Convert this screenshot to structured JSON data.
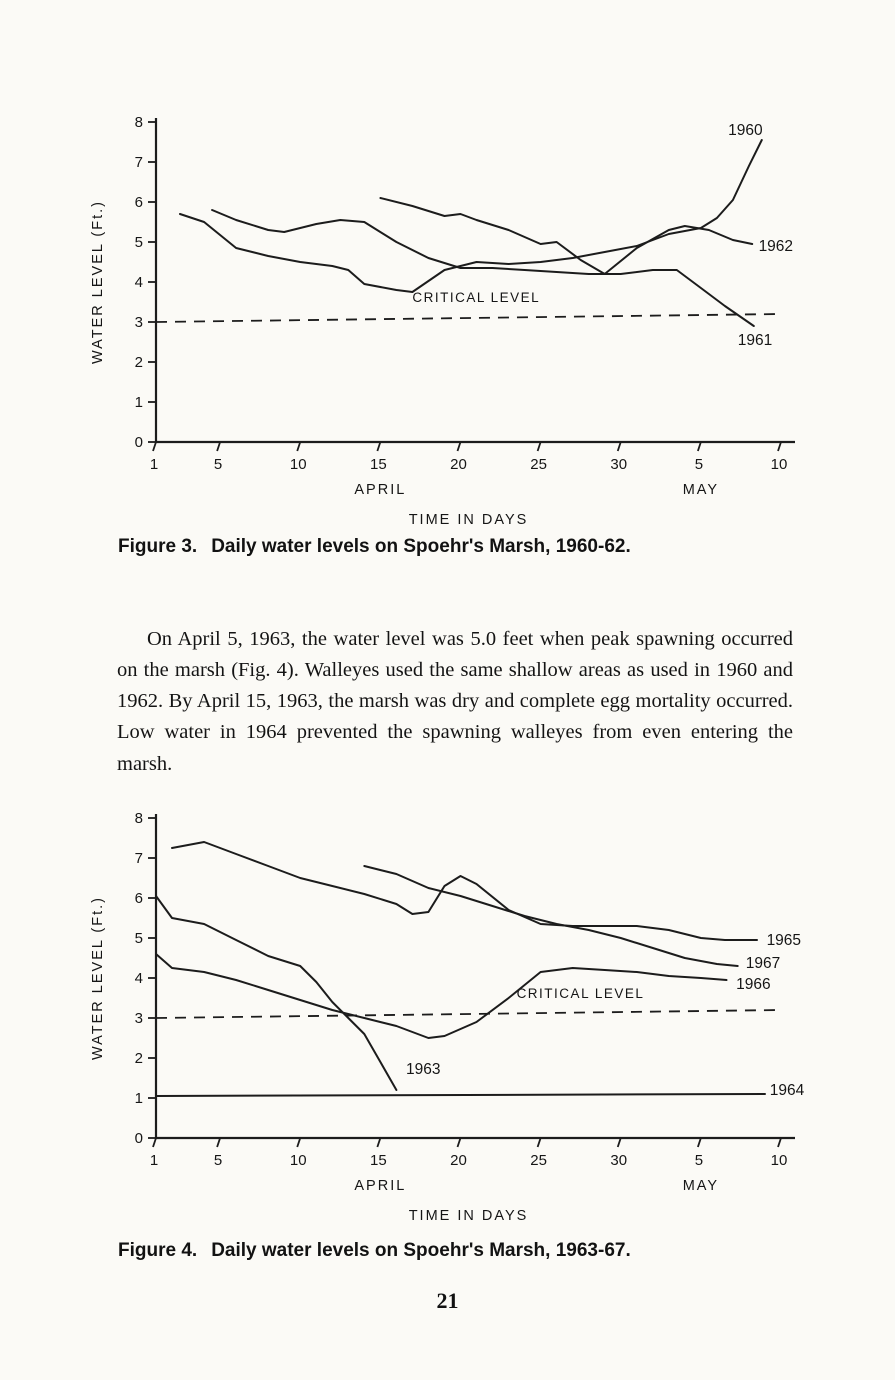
{
  "page_number": "21",
  "paragraph": "On April 5, 1963, the water level was 5.0 feet when peak spawning occurred on the marsh (Fig. 4). Walleyes used the same shallow areas as used in 1960 and 1962. By April 15, 1963, the marsh was dry and complete egg mortality occurred. Low water in 1964 prevented the spawning walleyes from even entering the marsh.",
  "figures": [
    {
      "caption_label": "Figure 3.",
      "caption_text": "Daily water levels on Spoehr's Marsh, 1960-62."
    },
    {
      "caption_label": "Figure 4.",
      "caption_text": "Daily water levels on Spoehr's Marsh, 1963-67."
    }
  ],
  "chart_data": [
    {
      "type": "line",
      "title": "Daily water levels on Spoehr's Marsh, 1960-62",
      "xlabel": "TIME IN DAYS",
      "ylabel": "WATER LEVEL (Ft.)",
      "xlim": [
        1,
        40
      ],
      "ylim": [
        0,
        8
      ],
      "y_ticks": [
        0,
        1,
        2,
        3,
        4,
        5,
        6,
        7,
        8
      ],
      "x_ticks": [
        {
          "value": 1,
          "label": "1"
        },
        {
          "value": 5,
          "label": "5"
        },
        {
          "value": 10,
          "label": "10"
        },
        {
          "value": 15,
          "label": "15"
        },
        {
          "value": 20,
          "label": "20"
        },
        {
          "value": 25,
          "label": "25"
        },
        {
          "value": 30,
          "label": "30"
        },
        {
          "value": 35,
          "label": "5"
        },
        {
          "value": 40,
          "label": "10"
        }
      ],
      "month_labels": [
        {
          "value": 15,
          "label": "APRIL"
        },
        {
          "value": 35,
          "label": "MAY"
        }
      ],
      "grid": false,
      "critical_level": {
        "label": "CRITICAL LEVEL",
        "x": [
          1,
          40
        ],
        "y": [
          3.0,
          3.2
        ],
        "label_x": 17,
        "label_y": 3.5
      },
      "series": [
        {
          "name": "1960",
          "x": [
            2.5,
            4,
            6,
            8,
            10,
            12,
            13,
            14,
            16,
            17,
            19,
            21,
            23,
            25,
            27,
            29,
            31,
            33,
            35,
            36,
            37,
            38,
            38.8
          ],
          "y": [
            5.7,
            5.5,
            4.85,
            4.65,
            4.5,
            4.4,
            4.3,
            3.95,
            3.8,
            3.75,
            4.3,
            4.5,
            4.45,
            4.5,
            4.6,
            4.75,
            4.9,
            5.2,
            5.35,
            5.6,
            6.05,
            6.9,
            7.55
          ],
          "label_x": 36.7,
          "label_y": 7.8
        },
        {
          "name": "1961",
          "x": [
            4.5,
            6,
            8,
            9,
            11,
            12.5,
            14,
            16,
            18,
            20,
            22,
            24,
            26,
            28,
            30,
            32,
            33.5,
            35,
            36.5,
            38.3
          ],
          "y": [
            5.8,
            5.55,
            5.3,
            5.25,
            5.45,
            5.55,
            5.5,
            5.0,
            4.6,
            4.35,
            4.35,
            4.3,
            4.25,
            4.2,
            4.2,
            4.3,
            4.3,
            3.85,
            3.4,
            2.9
          ],
          "label_x": 37.3,
          "label_y": 2.55
        },
        {
          "name": "1962",
          "x": [
            15,
            17,
            19,
            20,
            21,
            23,
            25,
            26,
            27.5,
            29,
            31,
            33,
            34,
            35.5,
            37,
            38.2
          ],
          "y": [
            6.1,
            5.9,
            5.65,
            5.7,
            5.55,
            5.3,
            4.95,
            5.0,
            4.55,
            4.2,
            4.85,
            5.3,
            5.4,
            5.3,
            5.05,
            4.95
          ],
          "label_x": 38.6,
          "label_y": 4.9
        }
      ]
    },
    {
      "type": "line",
      "title": "Daily water levels on Spoehr's Marsh, 1963-67",
      "xlabel": "TIME IN DAYS",
      "ylabel": "WATER LEVEL (Ft.)",
      "xlim": [
        1,
        40
      ],
      "ylim": [
        0,
        8
      ],
      "y_ticks": [
        0,
        1,
        2,
        3,
        4,
        5,
        6,
        7,
        8
      ],
      "x_ticks": [
        {
          "value": 1,
          "label": "1"
        },
        {
          "value": 5,
          "label": "5"
        },
        {
          "value": 10,
          "label": "10"
        },
        {
          "value": 15,
          "label": "15"
        },
        {
          "value": 20,
          "label": "20"
        },
        {
          "value": 25,
          "label": "25"
        },
        {
          "value": 30,
          "label": "30"
        },
        {
          "value": 35,
          "label": "5"
        },
        {
          "value": 40,
          "label": "10"
        }
      ],
      "month_labels": [
        {
          "value": 15,
          "label": "APRIL"
        },
        {
          "value": 35,
          "label": "MAY"
        }
      ],
      "grid": false,
      "critical_level": {
        "label": "CRITICAL LEVEL",
        "x": [
          1,
          40
        ],
        "y": [
          3.0,
          3.2
        ],
        "label_x": 23.5,
        "label_y": 3.5
      },
      "series": [
        {
          "name": "1965",
          "x": [
            2,
            4,
            6,
            8,
            10,
            12,
            14,
            16,
            17,
            18,
            19,
            20,
            21,
            23,
            25,
            27,
            29,
            31,
            33,
            35,
            36.5,
            38.5
          ],
          "y": [
            7.25,
            7.4,
            7.1,
            6.8,
            6.5,
            6.3,
            6.1,
            5.85,
            5.6,
            5.65,
            6.3,
            6.55,
            6.35,
            5.7,
            5.35,
            5.3,
            5.3,
            5.3,
            5.2,
            5.0,
            4.95,
            4.95
          ],
          "label_x": 39.1,
          "label_y": 4.95
        },
        {
          "name": "1967",
          "x": [
            14,
            16,
            18,
            20,
            22,
            24,
            26,
            28,
            30,
            32,
            34,
            36,
            37.3
          ],
          "y": [
            6.8,
            6.6,
            6.25,
            6.05,
            5.8,
            5.55,
            5.35,
            5.2,
            5.0,
            4.75,
            4.5,
            4.35,
            4.3
          ],
          "label_x": 37.8,
          "label_y": 4.38
        },
        {
          "name": "1966",
          "x": [
            1,
            2,
            4,
            6,
            8,
            10,
            12,
            14,
            16,
            18,
            19,
            21,
            23,
            25,
            27,
            29,
            31,
            33,
            35,
            36.6
          ],
          "y": [
            4.6,
            4.25,
            4.15,
            3.95,
            3.7,
            3.45,
            3.2,
            3.0,
            2.8,
            2.5,
            2.55,
            2.9,
            3.5,
            4.15,
            4.25,
            4.2,
            4.15,
            4.05,
            4.0,
            3.95
          ],
          "label_x": 37.2,
          "label_y": 3.85
        },
        {
          "name": "1963",
          "x": [
            1,
            2,
            4,
            6,
            8,
            10,
            11,
            12,
            13,
            14,
            15,
            16
          ],
          "y": [
            6.05,
            5.5,
            5.35,
            4.95,
            4.55,
            4.3,
            3.9,
            3.4,
            3.0,
            2.6,
            1.9,
            1.2
          ],
          "label_x": 16.6,
          "label_y": 1.72
        },
        {
          "name": "1964",
          "x": [
            1,
            39
          ],
          "y": [
            1.05,
            1.1
          ],
          "label_x": 39.3,
          "label_y": 1.2
        }
      ]
    }
  ]
}
